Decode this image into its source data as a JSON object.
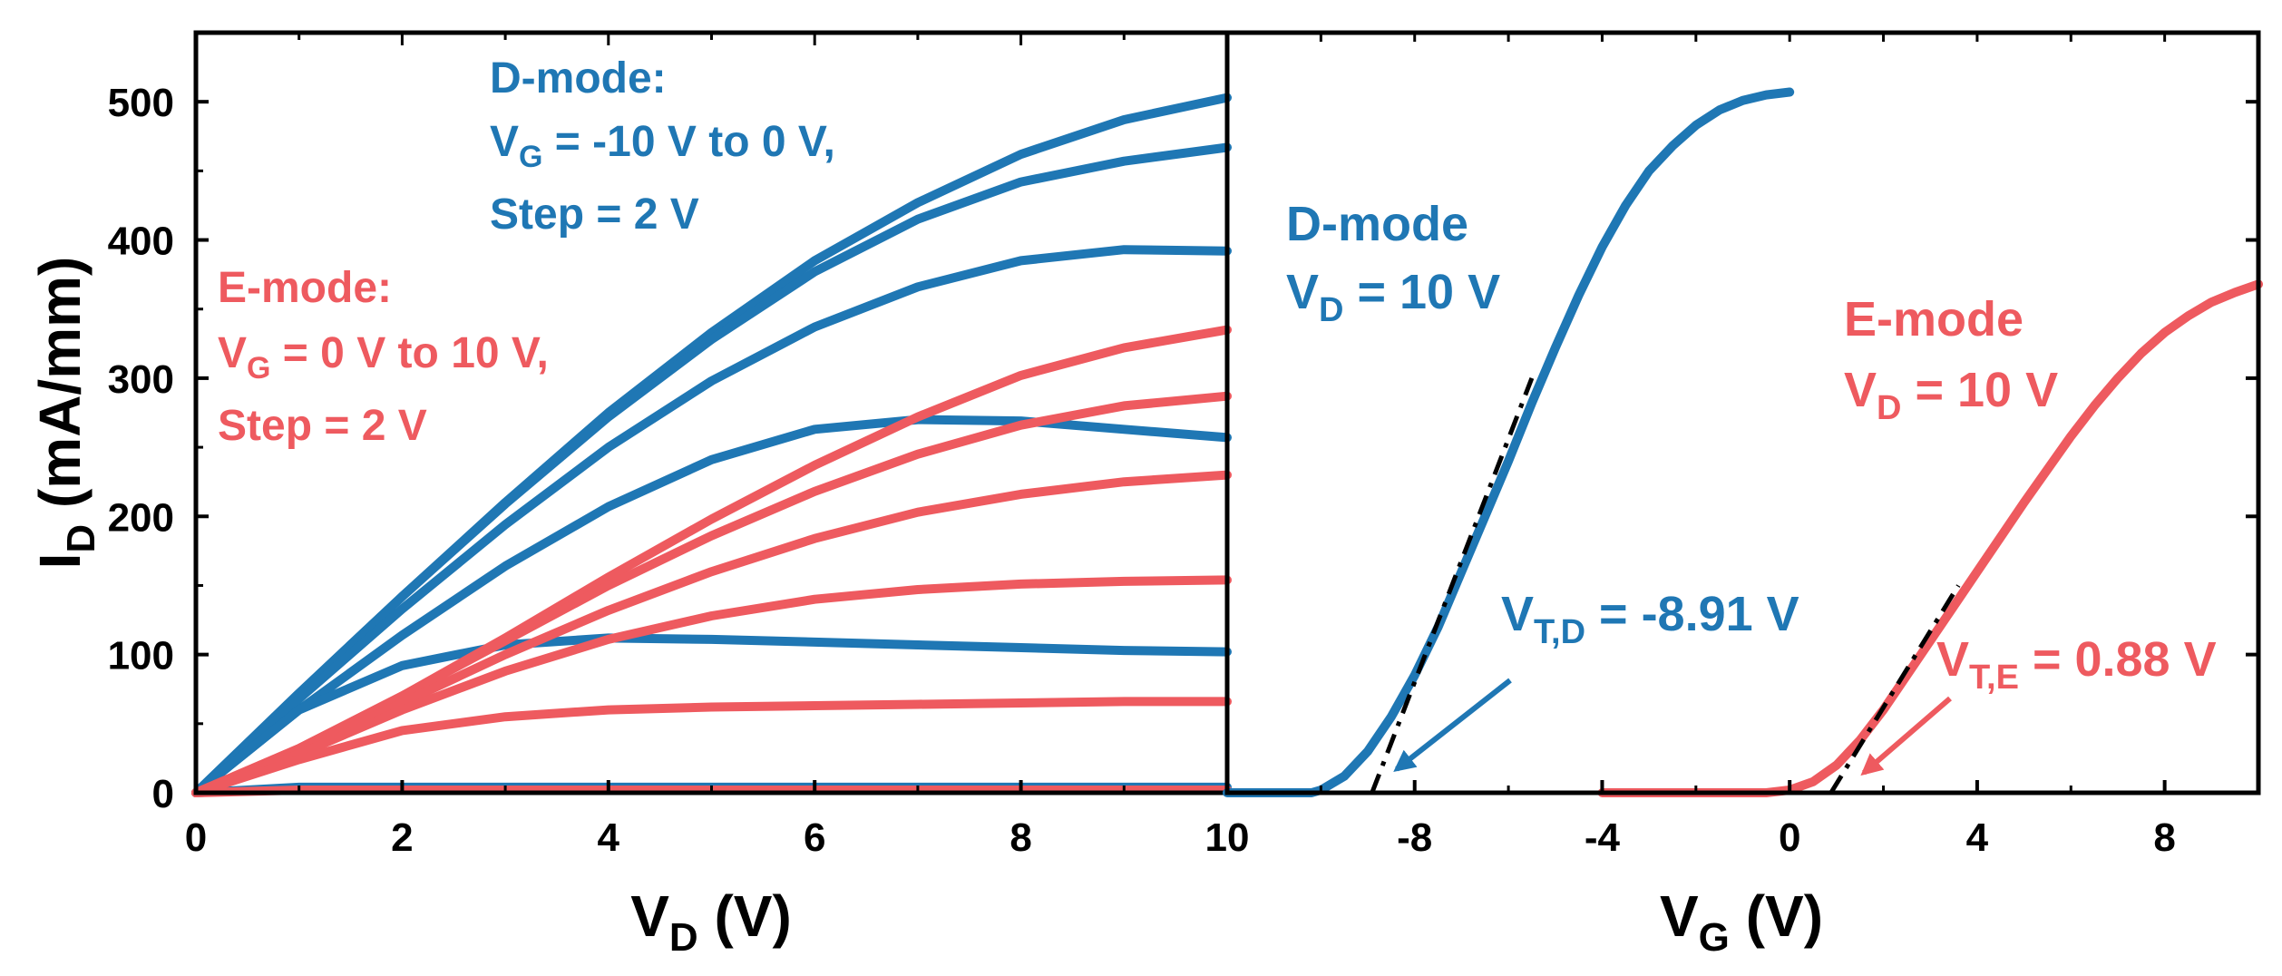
{
  "colors": {
    "d_mode": "#1f77b4",
    "e_mode": "#ee5a5f",
    "axis": "#000000",
    "fit": "#000000"
  },
  "chart_data": [
    {
      "type": "line",
      "title": "",
      "xlabel": {
        "main": "V",
        "sub": "D",
        "unit": " (V)"
      },
      "ylabel": {
        "main": "I",
        "sub": "D",
        "unit": " (mA/mm)"
      },
      "xlim": [
        0,
        10
      ],
      "ylim": [
        0,
        550
      ],
      "xticks": [
        0,
        2,
        4,
        6,
        8,
        10
      ],
      "yticks": [
        0,
        100,
        200,
        300,
        400,
        500
      ],
      "xticklabels": [
        "0",
        "2",
        "4",
        "6",
        "8",
        "10"
      ],
      "yticklabels": [
        "0",
        "100",
        "200",
        "300",
        "400",
        "500"
      ],
      "annotations": {
        "d_mode": {
          "line1": "D-mode:",
          "vg_main": "V",
          "vg_sub": "G",
          "vg_rest": " = -10 V to 0 V,",
          "line3": "Step = 2 V"
        },
        "e_mode": {
          "line1": "E-mode:",
          "vg_main": "V",
          "vg_sub": "G",
          "vg_rest": " = 0 V to 10 V,",
          "line3": "Step = 2 V"
        }
      },
      "x": [
        0,
        1,
        2,
        3,
        4,
        5,
        6,
        7,
        8,
        9,
        10
      ],
      "series": [
        {
          "name": "D-mode VG = 0 V",
          "group": "d_mode",
          "values": [
            0,
            72,
            142,
            210,
            275,
            333,
            385,
            427,
            462,
            487,
            503
          ]
        },
        {
          "name": "D-mode VG = -2 V",
          "group": "d_mode",
          "values": [
            0,
            72,
            142,
            209,
            272,
            328,
            377,
            415,
            442,
            457,
            467
          ]
        },
        {
          "name": "D-mode VG = -4 V",
          "group": "d_mode",
          "values": [
            0,
            68,
            133,
            194,
            250,
            298,
            337,
            366,
            385,
            393,
            392
          ]
        },
        {
          "name": "D-mode VG = -6 V",
          "group": "d_mode",
          "values": [
            0,
            60,
            114,
            164,
            207,
            241,
            263,
            270,
            269,
            263,
            257
          ]
        },
        {
          "name": "D-mode VG = -8 V",
          "group": "d_mode",
          "values": [
            0,
            60,
            92,
            107,
            112,
            111,
            109,
            107,
            105,
            103,
            102
          ]
        },
        {
          "name": "D-mode VG = -10 V",
          "group": "d_mode",
          "values": [
            0,
            4,
            4,
            4,
            4,
            4,
            4,
            4,
            4,
            4,
            4
          ]
        },
        {
          "name": "E-mode VG = 10 V",
          "group": "e_mode",
          "values": [
            0,
            32,
            70,
            112,
            156,
            198,
            237,
            272,
            302,
            322,
            335
          ]
        },
        {
          "name": "E-mode VG = 8 V",
          "group": "e_mode",
          "values": [
            0,
            32,
            70,
            110,
            150,
            186,
            218,
            245,
            266,
            280,
            287
          ]
        },
        {
          "name": "E-mode VG = 6 V",
          "group": "e_mode",
          "values": [
            0,
            30,
            65,
            100,
            132,
            160,
            184,
            203,
            216,
            225,
            230
          ]
        },
        {
          "name": "E-mode VG = 4 V",
          "group": "e_mode",
          "values": [
            0,
            28,
            60,
            88,
            111,
            128,
            140,
            147,
            151,
            153,
            154
          ]
        },
        {
          "name": "E-mode VG = 2 V",
          "group": "e_mode",
          "values": [
            0,
            24,
            45,
            55,
            60,
            62,
            63,
            64,
            65,
            66,
            66
          ]
        },
        {
          "name": "E-mode VG = 0 V",
          "group": "e_mode",
          "values": [
            0,
            2,
            2,
            2,
            2,
            2,
            2,
            2,
            2,
            2,
            2
          ]
        }
      ]
    },
    {
      "type": "line",
      "title": "",
      "xlabel": {
        "main": "V",
        "sub": "G",
        "unit": " (V)"
      },
      "ylabel": "",
      "xlim": [
        -12,
        10
      ],
      "ylim": [
        0,
        550
      ],
      "xticks": [
        -8,
        -4,
        0,
        4,
        8
      ],
      "xticklabels": [
        "-8",
        "-4",
        "0",
        "4",
        "8"
      ],
      "annotations": {
        "d_mode": {
          "line1": "D-mode",
          "vd_main": "V",
          "vd_sub": "D",
          "vd_rest": " = 10 V",
          "vt_main": "V",
          "vt_sub": "T,D",
          "vt_rest": " = -8.91 V"
        },
        "e_mode": {
          "line1": "E-mode",
          "vd_main": "V",
          "vd_sub": "D",
          "vd_rest": " = 10 V",
          "vt_main": "V",
          "vt_sub": "T,E",
          "vt_rest": " = 0.88 V"
        }
      },
      "series": [
        {
          "name": "D-mode transfer (VD = 10 V)",
          "group": "d_mode",
          "x": [
            -12,
            -11,
            -10.2,
            -10,
            -9.5,
            -9,
            -8.5,
            -8,
            -7.5,
            -7,
            -6.5,
            -6,
            -5.5,
            -5,
            -4.5,
            -4,
            -3.5,
            -3,
            -2.5,
            -2,
            -1.5,
            -1,
            -0.5,
            0
          ],
          "values": [
            0,
            0,
            0,
            2,
            12,
            30,
            55,
            85,
            120,
            160,
            200,
            240,
            282,
            322,
            360,
            395,
            425,
            450,
            468,
            483,
            494,
            501,
            505,
            507
          ]
        },
        {
          "name": "E-mode transfer (VD = 10 V)",
          "group": "e_mode",
          "x": [
            -4,
            -2,
            -1,
            -0.5,
            0,
            0.5,
            1,
            1.5,
            2,
            2.5,
            3,
            3.5,
            4,
            4.5,
            5,
            5.5,
            6,
            6.5,
            7,
            7.5,
            8,
            8.5,
            9,
            9.5,
            10
          ],
          "values": [
            0,
            0,
            0,
            0,
            2,
            8,
            20,
            38,
            60,
            85,
            110,
            135,
            160,
            185,
            210,
            234,
            258,
            280,
            300,
            318,
            333,
            345,
            355,
            362,
            368
          ]
        }
      ],
      "fit_lines": [
        {
          "name": "D-mode linear fit",
          "x": [
            -8.91,
            -5.5
          ],
          "values": [
            0,
            300
          ]
        },
        {
          "name": "E-mode linear fit",
          "x": [
            0.88,
            3.6
          ],
          "values": [
            0,
            150
          ]
        }
      ]
    }
  ]
}
